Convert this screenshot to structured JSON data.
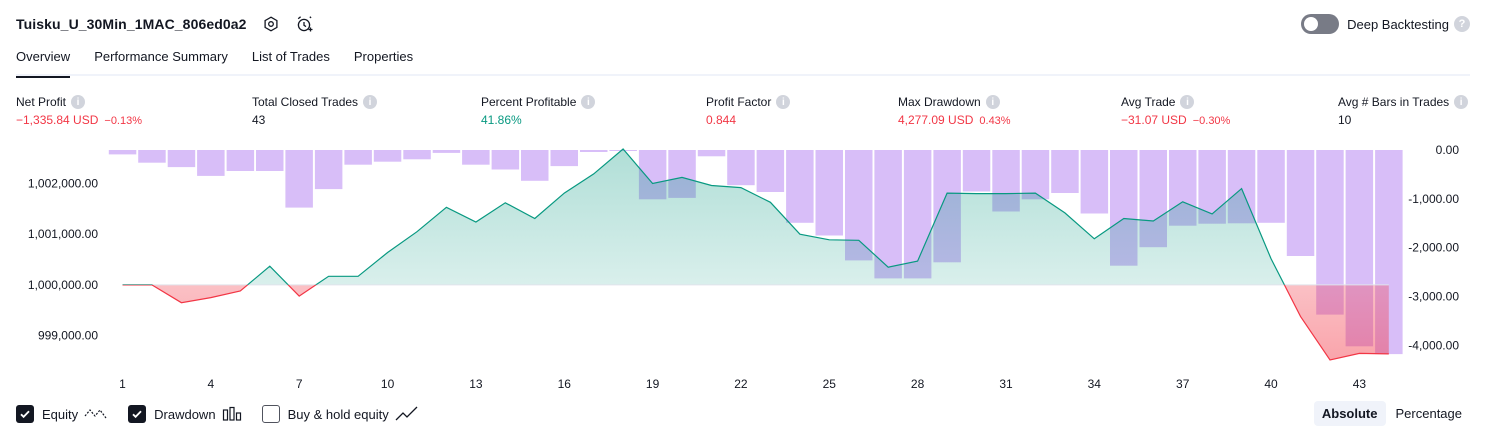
{
  "header": {
    "strategy_name": "Tuisku_U_30Min_1MAC_806ed0a2",
    "settings_icon": "settings-icon",
    "alert_icon": "alarm-add-icon",
    "deep_backtesting_label": "Deep Backtesting",
    "deep_backtesting_on": false
  },
  "tabs": [
    {
      "label": "Overview",
      "active": true
    },
    {
      "label": "Performance Summary",
      "active": false
    },
    {
      "label": "List of Trades",
      "active": false
    },
    {
      "label": "Properties",
      "active": false
    }
  ],
  "metrics": [
    {
      "label": "Net Profit",
      "value": "−1,335.84 USD",
      "pct": "−0.13%",
      "tone": "neg"
    },
    {
      "label": "Total Closed Trades",
      "value": "43",
      "pct": "",
      "tone": "neutral"
    },
    {
      "label": "Percent Profitable",
      "value": "41.86%",
      "pct": "",
      "tone": "pos"
    },
    {
      "label": "Profit Factor",
      "value": "0.844",
      "pct": "",
      "tone": "neg"
    },
    {
      "label": "Max Drawdown",
      "value": "4,277.09 USD",
      "pct": "0.43%",
      "tone": "neg"
    },
    {
      "label": "Avg Trade",
      "value": "−31.07 USD",
      "pct": "−0.30%",
      "tone": "neg"
    },
    {
      "label": "Avg # Bars in Trades",
      "value": "10",
      "pct": "",
      "tone": "neutral"
    }
  ],
  "chart_data": {
    "type": "line",
    "equity_ylim": [
      998500,
      1002700
    ],
    "equity_ticks": [
      "1,002,000.00",
      "1,001,000.00",
      "1,000,000.00",
      "999,000.00"
    ],
    "equity_tick_values": [
      1002000,
      1001000,
      1000000,
      999000
    ],
    "drawdown_ylim": [
      -4300,
      0
    ],
    "drawdown_ticks": [
      "0.00",
      "-1,000.00",
      "-2,000.00",
      "-3,000.00",
      "-4,000.00"
    ],
    "drawdown_tick_values": [
      0,
      -1000,
      -2000,
      -3000,
      -4000
    ],
    "x_ticks": [
      "1",
      "4",
      "7",
      "10",
      "13",
      "16",
      "19",
      "22",
      "25",
      "28",
      "31",
      "34",
      "37",
      "40",
      "43"
    ],
    "x_tick_values": [
      1,
      4,
      7,
      10,
      13,
      16,
      19,
      22,
      25,
      28,
      31,
      34,
      37,
      40,
      43
    ],
    "baseline": 1000000,
    "equity": [
      {
        "x": 1,
        "y": 1000000
      },
      {
        "x": 2,
        "y": 1000000
      },
      {
        "x": 3,
        "y": 999650
      },
      {
        "x": 4,
        "y": 999750
      },
      {
        "x": 5,
        "y": 999880
      },
      {
        "x": 6,
        "y": 1000370
      },
      {
        "x": 7,
        "y": 999780
      },
      {
        "x": 8,
        "y": 1000170
      },
      {
        "x": 9,
        "y": 1000170
      },
      {
        "x": 10,
        "y": 1000640
      },
      {
        "x": 11,
        "y": 1001050
      },
      {
        "x": 12,
        "y": 1001530
      },
      {
        "x": 13,
        "y": 1001240
      },
      {
        "x": 14,
        "y": 1001620
      },
      {
        "x": 15,
        "y": 1001310
      },
      {
        "x": 16,
        "y": 1001810
      },
      {
        "x": 17,
        "y": 1002190
      },
      {
        "x": 18,
        "y": 1002680
      },
      {
        "x": 19,
        "y": 1002000
      },
      {
        "x": 20,
        "y": 1002120
      },
      {
        "x": 21,
        "y": 1001960
      },
      {
        "x": 22,
        "y": 1001920
      },
      {
        "x": 23,
        "y": 1001630
      },
      {
        "x": 24,
        "y": 1001000
      },
      {
        "x": 25,
        "y": 1000890
      },
      {
        "x": 26,
        "y": 1000880
      },
      {
        "x": 27,
        "y": 1000350
      },
      {
        "x": 28,
        "y": 1000470
      },
      {
        "x": 29,
        "y": 1001810
      },
      {
        "x": 30,
        "y": 1001800
      },
      {
        "x": 31,
        "y": 1001800
      },
      {
        "x": 32,
        "y": 1001810
      },
      {
        "x": 33,
        "y": 1001420
      },
      {
        "x": 34,
        "y": 1000910
      },
      {
        "x": 35,
        "y": 1001310
      },
      {
        "x": 36,
        "y": 1001260
      },
      {
        "x": 37,
        "y": 1001640
      },
      {
        "x": 38,
        "y": 1001400
      },
      {
        "x": 39,
        "y": 1001900
      },
      {
        "x": 40,
        "y": 1000520
      },
      {
        "x": 41,
        "y": 999380
      },
      {
        "x": 42,
        "y": 998520
      },
      {
        "x": 43,
        "y": 998650
      },
      {
        "x": 44,
        "y": 998640
      }
    ],
    "drawdown": [
      -90,
      -260,
      -350,
      -530,
      -430,
      -430,
      -1180,
      -800,
      -300,
      -240,
      -190,
      -60,
      -300,
      -400,
      -630,
      -330,
      -40,
      0,
      -1010,
      -980,
      -130,
      -720,
      -860,
      -1490,
      -1750,
      -2260,
      -2630,
      -2630,
      -2300,
      -850,
      -1260,
      -1010,
      -880,
      -1300,
      -2370,
      -1990,
      -1550,
      -1510,
      -1500,
      -1490,
      -2170,
      -3370,
      -4020,
      -4180
    ],
    "series": [
      {
        "name": "Equity",
        "color": "#089981",
        "neg_color": "#f23645"
      },
      {
        "name": "Drawdown",
        "color": "#d1b3f7"
      }
    ]
  },
  "legend": [
    {
      "label": "Equity",
      "checked": true,
      "icon": "equity-line-icon"
    },
    {
      "label": "Drawdown",
      "checked": true,
      "icon": "drawdown-bars-icon"
    },
    {
      "label": "Buy & hold equity",
      "checked": false,
      "icon": "buy-hold-line-icon"
    }
  ],
  "mode": {
    "absolute_label": "Absolute",
    "percentage_label": "Percentage",
    "selected": "Absolute"
  }
}
